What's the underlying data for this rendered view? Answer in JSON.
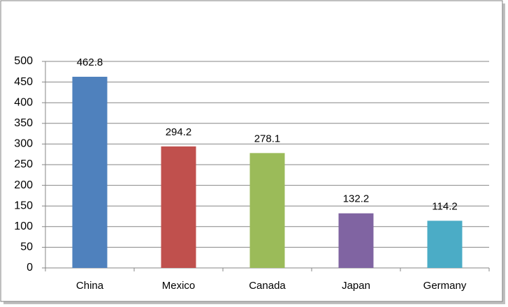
{
  "chart_data": {
    "type": "bar",
    "categories": [
      "China",
      "Mexico",
      "Canada",
      "Japan",
      "Germany"
    ],
    "values": [
      462.8,
      294.2,
      278.1,
      132.2,
      114.2
    ],
    "colors": [
      "#4f81bd",
      "#c0504d",
      "#9bbb59",
      "#8064a2",
      "#4bacc6"
    ],
    "ylim": [
      0,
      500
    ],
    "yticks": [
      0,
      50,
      100,
      150,
      200,
      250,
      300,
      350,
      400,
      450,
      500
    ],
    "grid": true
  }
}
